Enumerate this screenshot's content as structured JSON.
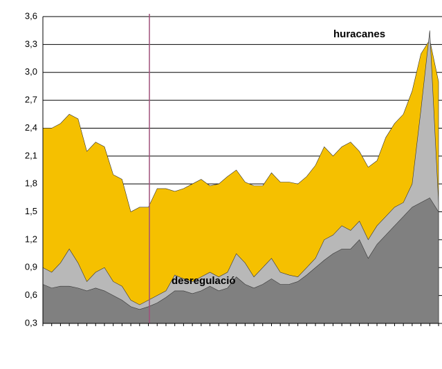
{
  "chart_data": {
    "type": "area",
    "categories": [
      null,
      null,
      null,
      null,
      null,
      null,
      null,
      null,
      null,
      null,
      null,
      null,
      null,
      null,
      null,
      null,
      null,
      null,
      null,
      null,
      null,
      null,
      null,
      null,
      null,
      null,
      null,
      null,
      null,
      null,
      null,
      null,
      null,
      null,
      null,
      null,
      null,
      null,
      null,
      null,
      null,
      null,
      null,
      null,
      null,
      null
    ],
    "series": [
      {
        "color": "#f5c000",
        "values": [
          2.4,
          2.4,
          2.45,
          2.55,
          2.5,
          2.15,
          2.25,
          2.2,
          1.9,
          1.85,
          1.5,
          1.55,
          1.55,
          1.75,
          1.75,
          1.72,
          1.75,
          1.8,
          1.85,
          1.78,
          1.8,
          1.88,
          1.95,
          1.82,
          1.78,
          1.78,
          1.92,
          1.82,
          1.82,
          1.8,
          1.88,
          2.0,
          2.2,
          2.1,
          2.2,
          2.25,
          2.15,
          1.98,
          2.05,
          2.3,
          2.45,
          2.55,
          2.8,
          3.2,
          3.35,
          2.9
        ]
      },
      {
        "color": "#b8b8b8",
        "values": [
          0.9,
          0.85,
          0.95,
          1.1,
          0.95,
          0.75,
          0.85,
          0.9,
          0.75,
          0.7,
          0.55,
          0.5,
          0.55,
          0.6,
          0.65,
          0.82,
          0.78,
          0.75,
          0.8,
          0.85,
          0.8,
          0.85,
          1.05,
          0.95,
          0.8,
          0.9,
          1.0,
          0.85,
          0.82,
          0.8,
          0.9,
          1.0,
          1.2,
          1.25,
          1.35,
          1.3,
          1.4,
          1.2,
          1.35,
          1.45,
          1.55,
          1.6,
          1.8,
          2.6,
          3.45,
          1.6
        ]
      },
      {
        "color": "#808080",
        "values": [
          0.72,
          0.68,
          0.7,
          0.7,
          0.68,
          0.65,
          0.68,
          0.65,
          0.6,
          0.55,
          0.48,
          0.45,
          0.48,
          0.52,
          0.58,
          0.65,
          0.65,
          0.62,
          0.65,
          0.7,
          0.65,
          0.68,
          0.8,
          0.72,
          0.68,
          0.72,
          0.78,
          0.72,
          0.72,
          0.75,
          0.82,
          0.9,
          0.98,
          1.05,
          1.1,
          1.1,
          1.2,
          1.0,
          1.15,
          1.25,
          1.35,
          1.45,
          1.55,
          1.6,
          1.65,
          1.5
        ]
      }
    ],
    "ylim": [
      0.3,
      3.6
    ],
    "yticks": [
      {
        "value": 0.3,
        "label": "0,3"
      },
      {
        "value": 0.6,
        "label": "0,6"
      },
      {
        "value": 0.9,
        "label": "0,9"
      },
      {
        "value": 1.2,
        "label": "1,2"
      },
      {
        "value": 1.5,
        "label": "1,5"
      },
      {
        "value": 1.8,
        "label": "1,8"
      },
      {
        "value": 2.1,
        "label": "2,1"
      },
      {
        "value": 2.4,
        "label": "2,4"
      },
      {
        "value": 2.7,
        "label": "2,7"
      },
      {
        "value": 3.0,
        "label": "3,0"
      },
      {
        "value": 3.3,
        "label": "3,3"
      },
      {
        "value": 3.6,
        "label": "3,6"
      }
    ],
    "grid": true,
    "annotations": [
      "huracanes",
      "desregulació"
    ]
  }
}
